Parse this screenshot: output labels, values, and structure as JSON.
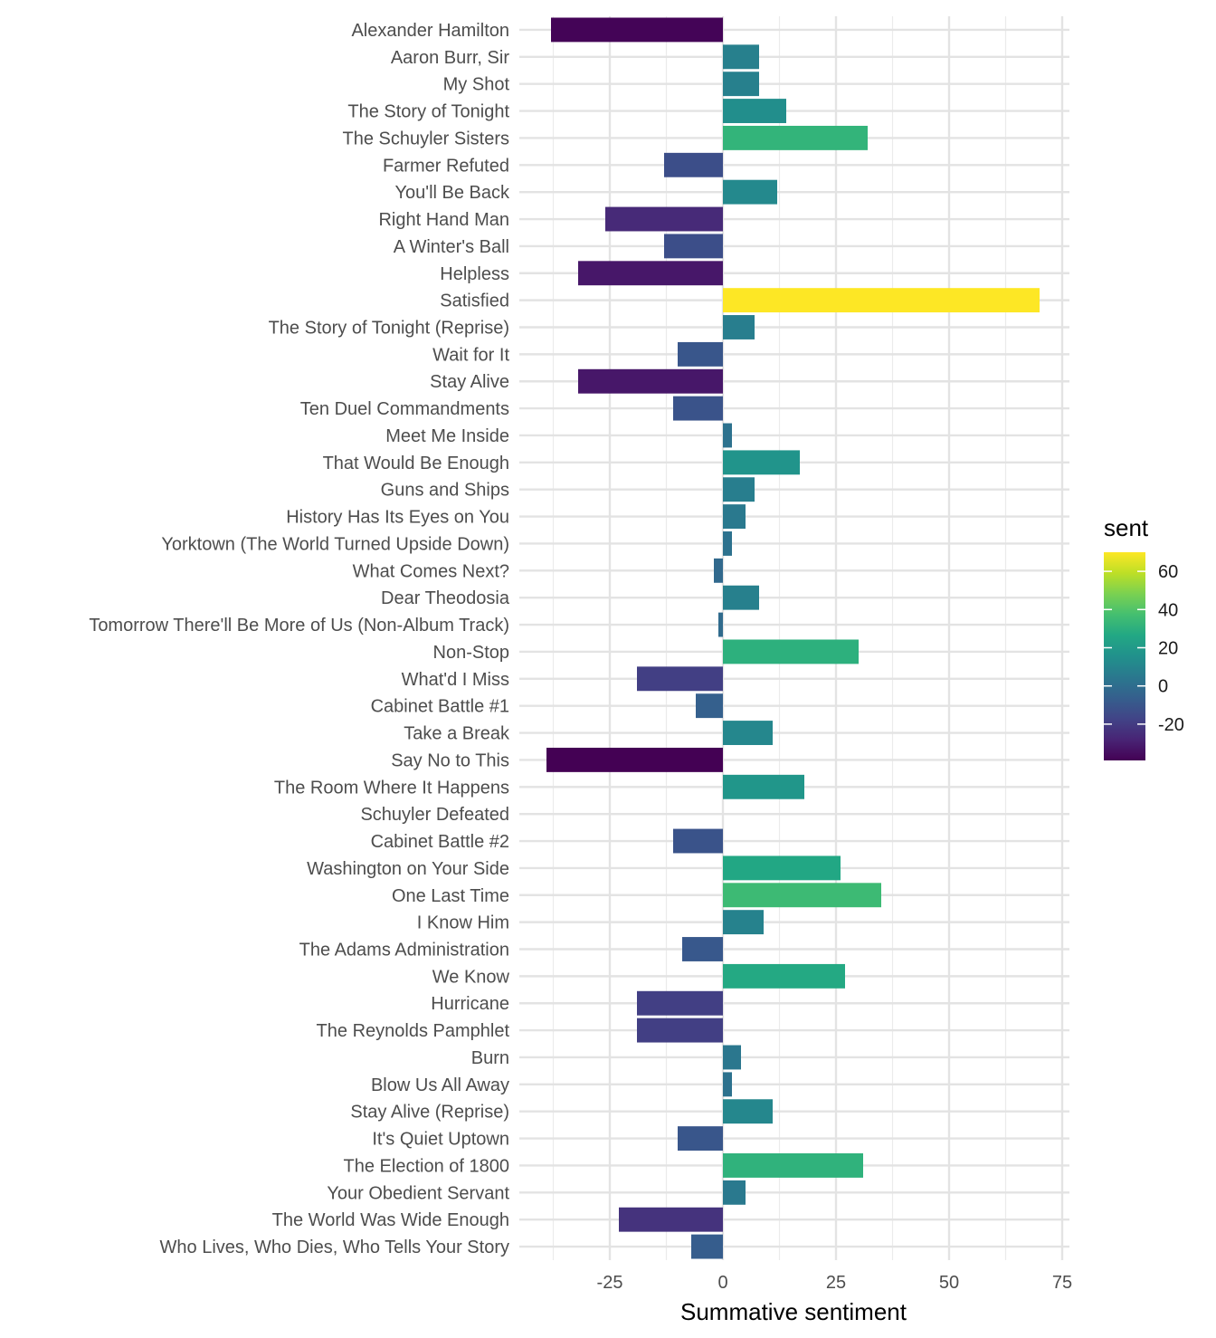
{
  "chart_data": {
    "type": "bar",
    "orientation": "horizontal",
    "title": "",
    "xlabel": "Summative sentiment",
    "ylabel": "",
    "xlim": [
      -40,
      75
    ],
    "x_ticks": [
      -25,
      0,
      25,
      50,
      75
    ],
    "x_tick_labels": [
      "-25",
      "0",
      "25",
      "50",
      "75"
    ],
    "grid": true,
    "categories": [
      "Alexander Hamilton",
      "Aaron Burr, Sir",
      "My Shot",
      "The Story of Tonight",
      "The Schuyler Sisters",
      "Farmer Refuted",
      "You'll Be Back",
      "Right Hand Man",
      "A Winter's Ball",
      "Helpless",
      "Satisfied",
      "The Story of Tonight (Reprise)",
      "Wait for It",
      "Stay Alive",
      "Ten Duel Commandments",
      "Meet Me Inside",
      "That Would Be Enough",
      "Guns and Ships",
      "History Has Its Eyes on You",
      "Yorktown (The World Turned Upside Down)",
      "What Comes Next?",
      "Dear Theodosia",
      "Tomorrow There'll Be More of Us (Non-Album Track)",
      "Non-Stop",
      "What'd I Miss",
      "Cabinet Battle #1",
      "Take a Break",
      "Say No to This",
      "The Room Where It Happens",
      "Schuyler Defeated",
      "Cabinet Battle #2",
      "Washington on Your Side",
      "One Last Time",
      "I Know Him",
      "The Adams Administration",
      "We Know",
      "Hurricane",
      "The Reynolds Pamphlet",
      "Burn",
      "Blow Us All Away",
      "Stay Alive (Reprise)",
      "It's Quiet Uptown",
      "The Election of 1800",
      "Your Obedient Servant",
      "The World Was Wide Enough",
      "Who Lives, Who Dies, Who Tells Your Story"
    ],
    "values": [
      -38,
      8,
      8,
      14,
      32,
      -13,
      12,
      -26,
      -13,
      -32,
      70,
      7,
      -10,
      -32,
      -11,
      2,
      17,
      7,
      5,
      2,
      -2,
      8,
      -1,
      30,
      -19,
      -6,
      11,
      -39,
      18,
      0,
      -11,
      26,
      35,
      9,
      -9,
      27,
      -19,
      -19,
      4,
      2,
      11,
      -10,
      31,
      5,
      -23,
      -7
    ],
    "legend": {
      "title": "sent",
      "position": "right",
      "colormap": "viridis",
      "range": [
        -39,
        70
      ],
      "ticks": [
        -20,
        0,
        20,
        40,
        60
      ],
      "tick_labels": [
        "-20",
        "0",
        "20",
        "40",
        "60"
      ]
    }
  }
}
